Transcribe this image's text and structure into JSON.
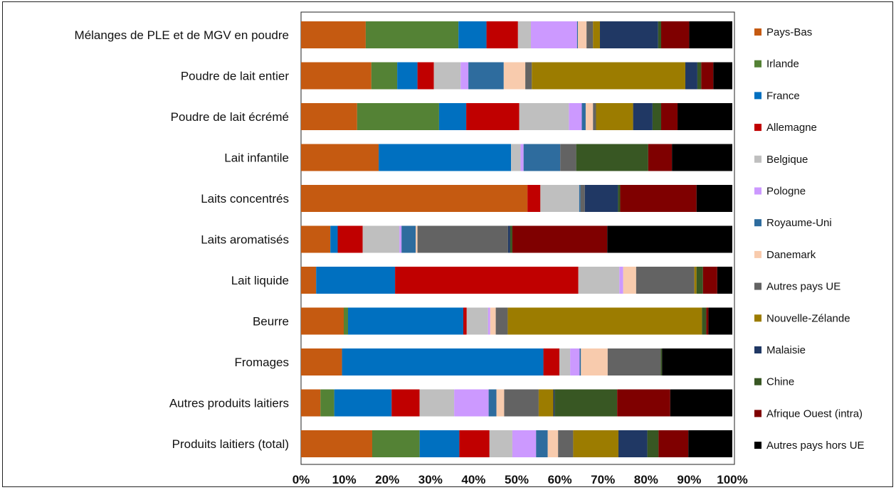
{
  "chart_data": {
    "type": "bar",
    "orientation": "horizontal",
    "stacked": "percent",
    "title": "",
    "xlabel": "",
    "ylabel": "",
    "xlim": [
      0,
      100
    ],
    "x_ticks": [
      "0%",
      "10%",
      "20%",
      "30%",
      "40%",
      "50%",
      "60%",
      "70%",
      "80%",
      "90%",
      "100%"
    ],
    "grid": false,
    "legend_position": "right",
    "categories": [
      "Mélanges de PLE et de MGV en poudre",
      "Poudre de lait entier",
      "Poudre de lait écrémé",
      "Lait infantile",
      "Laits concentrés",
      "Laits aromatisés",
      "Lait liquide",
      "Beurre",
      "Fromages",
      "Autres produits laitiers",
      "Produits laitiers (total)"
    ],
    "series": [
      {
        "name": "Pays-Bas",
        "color": "#C55A11",
        "values": [
          15,
          16.3,
          13,
          18,
          52.5,
          6.8,
          3.5,
          10,
          9.5,
          4.5,
          16.5
        ]
      },
      {
        "name": "Irlande",
        "color": "#548235",
        "values": [
          21.5,
          6,
          19,
          0,
          0,
          0,
          0,
          1,
          0,
          3.2,
          11
        ]
      },
      {
        "name": "France",
        "color": "#0070C0",
        "values": [
          6.5,
          4.7,
          6.3,
          30.7,
          0,
          1.7,
          18.3,
          27,
          46.7,
          13.3,
          9.2
        ]
      },
      {
        "name": "Allemagne",
        "color": "#C00000",
        "values": [
          7.3,
          3.8,
          12.3,
          0,
          3,
          5.8,
          42.5,
          0.8,
          3.7,
          6.5,
          7
        ]
      },
      {
        "name": "Belgique",
        "color": "#BFBFBF",
        "values": [
          3,
          6.2,
          11.5,
          2.2,
          9,
          8.5,
          9.5,
          5,
          2.5,
          8,
          5.3
        ]
      },
      {
        "name": "Pologne",
        "color": "#CC99FF",
        "values": [
          10.7,
          1.8,
          3,
          0.7,
          0,
          0.5,
          0.9,
          0.5,
          2.2,
          8,
          5.5
        ]
      },
      {
        "name": "Royaume-Uni",
        "color": "#2E6C9E",
        "values": [
          0.2,
          8.2,
          0.9,
          8.5,
          0.3,
          3.3,
          0,
          0,
          0.3,
          1.8,
          2.7
        ]
      },
      {
        "name": "Danemark",
        "color": "#F8CBAD",
        "values": [
          2,
          5,
          1.7,
          0,
          0,
          0.4,
          3,
          1.3,
          6.2,
          1.8,
          2.4
        ]
      },
      {
        "name": "Autres pays UE",
        "color": "#636363",
        "values": [
          1.5,
          1.5,
          0.7,
          3.7,
          1,
          21,
          13.5,
          2.8,
          12.3,
          8,
          3.5
        ]
      },
      {
        "name": "Nouvelle-Zélande",
        "color": "#9C7C00",
        "values": [
          1.6,
          35.6,
          8.6,
          0,
          0,
          0,
          0.5,
          45.5,
          0,
          3.4,
          10.5
        ]
      },
      {
        "name": "Malaisie",
        "color": "#203864",
        "values": [
          13.5,
          2.8,
          4.5,
          0,
          7.7,
          0.5,
          0,
          0,
          0,
          0.3,
          6.7
        ]
      },
      {
        "name": "Chine",
        "color": "#385723",
        "values": [
          0.7,
          0.9,
          2,
          16.7,
          0.5,
          0.5,
          1.5,
          1,
          0.3,
          14.5,
          2.6
        ]
      },
      {
        "name": "Afrique Ouest (intra)",
        "color": "#7F0000",
        "values": [
          6.5,
          2.8,
          3.8,
          5.5,
          17.7,
          22,
          3.3,
          0.5,
          0,
          12.3,
          6.9
        ]
      },
      {
        "name": "Autres pays hors UE",
        "color": "#000000",
        "values": [
          10,
          4.4,
          12.7,
          14,
          8.3,
          29,
          3.5,
          5.6,
          16.3,
          14.4,
          10.2
        ]
      }
    ]
  }
}
